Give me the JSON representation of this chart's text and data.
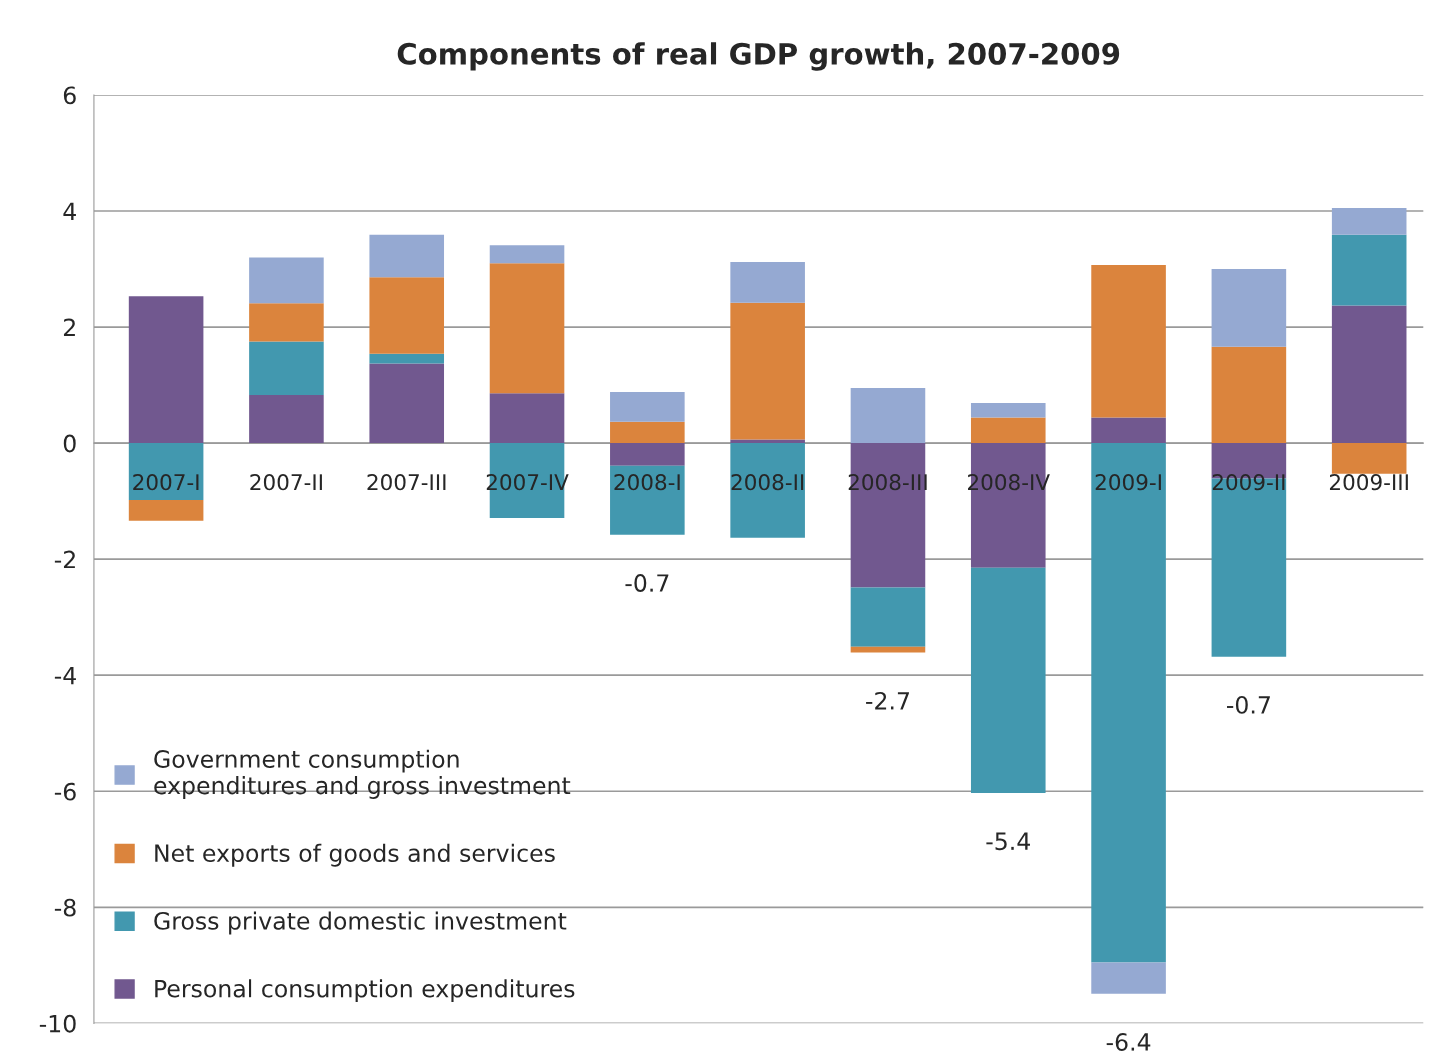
{
  "chart_data": {
    "type": "bar",
    "title": "Components of real GDP growth, 2007-2009",
    "stacked": true,
    "categories": [
      "2007-I",
      "2007-II",
      "2007-III",
      "2007-IV",
      "2008-I",
      "2008-II",
      "2008-III",
      "2008-IV",
      "2009-I",
      "2009-II",
      "2009-III"
    ],
    "series": [
      {
        "name": "Personal consumption expenditures",
        "color": "#71588f",
        "values": [
          2.53,
          0.83,
          1.37,
          0.86,
          -0.39,
          0.06,
          -2.49,
          -2.15,
          0.44,
          -0.61,
          2.37
        ]
      },
      {
        "name": "Gross private domestic investment",
        "color": "#4298af",
        "values": [
          -0.98,
          0.92,
          0.17,
          -1.29,
          -1.19,
          -1.63,
          -1.02,
          -3.88,
          -8.95,
          -3.07,
          1.22
        ]
      },
      {
        "name": "Net exports of goods and services",
        "color": "#db843d",
        "values": [
          -0.36,
          0.66,
          1.32,
          2.24,
          0.37,
          2.36,
          -0.1,
          0.44,
          2.63,
          1.66,
          -0.53
        ]
      },
      {
        "name": "Government consumption\nexpenditures and gross investment",
        "color": "#95a9d2",
        "values": [
          null,
          0.79,
          0.73,
          0.31,
          0.51,
          0.7,
          0.95,
          0.25,
          -0.54,
          1.34,
          0.46
        ]
      }
    ],
    "totals": [
      null,
      null,
      null,
      null,
      "-0.7",
      null,
      "-2.7",
      "-5.4",
      "-6.4",
      "-0.7",
      null
    ],
    "ylim": [
      -10,
      6
    ],
    "yticks": [
      -10,
      -8,
      -6,
      -4,
      -2,
      0,
      2,
      4,
      6
    ],
    "grid": "y",
    "legend": "bottom left"
  }
}
